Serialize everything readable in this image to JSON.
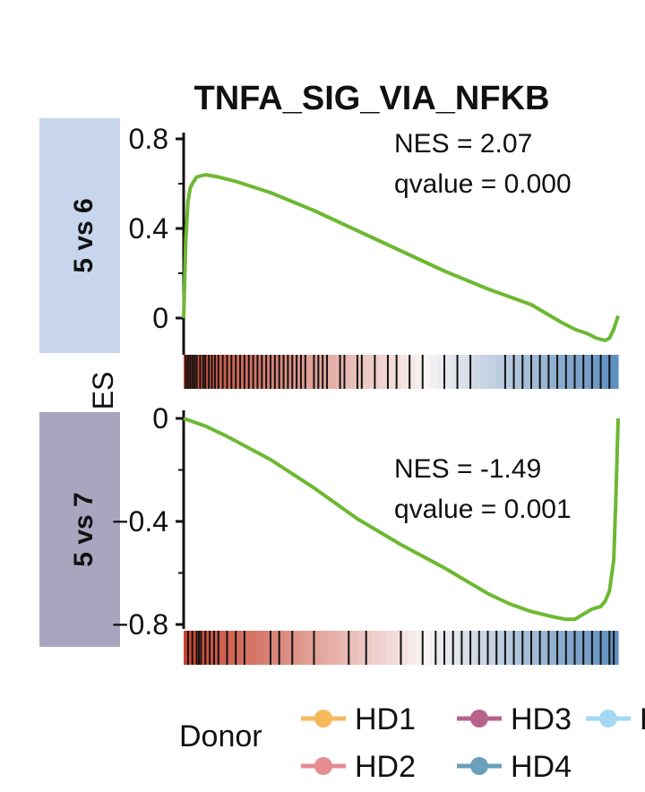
{
  "chart_data": {
    "type": "line",
    "title": "TNFA_SIG_VIA_NFKB",
    "ylabel": "ES",
    "panels": [
      {
        "strip_label": "5 vs 6",
        "strip_color": "#c7d6ec",
        "nes_text": "NES = 2.07",
        "qvalue_text": "qvalue = 0.000",
        "ylim": [
          -0.1,
          0.82
        ],
        "yticks": [
          0,
          0.4,
          0.8
        ],
        "ytick_labels": [
          "0",
          "0.4",
          "0.8"
        ],
        "line_color": "#6db832",
        "x": [
          0,
          0.005,
          0.01,
          0.015,
          0.02,
          0.03,
          0.05,
          0.08,
          0.12,
          0.2,
          0.3,
          0.4,
          0.5,
          0.6,
          0.7,
          0.8,
          0.87,
          0.9,
          0.93,
          0.95,
          0.97,
          0.98,
          0.99,
          1.0
        ],
        "es": [
          0.0,
          0.35,
          0.52,
          0.58,
          0.6,
          0.63,
          0.64,
          0.63,
          0.61,
          0.56,
          0.48,
          0.39,
          0.3,
          0.21,
          0.13,
          0.06,
          -0.02,
          -0.05,
          -0.07,
          -0.09,
          -0.1,
          -0.09,
          -0.05,
          0.01
        ],
        "hits": [
          0.005,
          0.01,
          0.015,
          0.02,
          0.025,
          0.03,
          0.038,
          0.045,
          0.05,
          0.058,
          0.065,
          0.072,
          0.08,
          0.09,
          0.1,
          0.11,
          0.12,
          0.13,
          0.14,
          0.15,
          0.16,
          0.17,
          0.18,
          0.19,
          0.2,
          0.21,
          0.22,
          0.23,
          0.24,
          0.25,
          0.26,
          0.27,
          0.28,
          0.3,
          0.31,
          0.32,
          0.33,
          0.36,
          0.37,
          0.4,
          0.41,
          0.44,
          0.47,
          0.49,
          0.52,
          0.55,
          0.6,
          0.63,
          0.66,
          0.74,
          0.76,
          0.78,
          0.8,
          0.82,
          0.84,
          0.86,
          0.88,
          0.9,
          0.92,
          0.94,
          0.96,
          0.98
        ]
      },
      {
        "strip_label": "5 vs 7",
        "strip_color": "#a9a5bf",
        "nes_text": "NES = -1.49",
        "qvalue_text": "qvalue = 0.001",
        "ylim": [
          -0.82,
          0.02
        ],
        "yticks": [
          0,
          -0.4,
          -0.8
        ],
        "ytick_labels": [
          "0",
          "−0.4",
          "−0.8"
        ],
        "line_color": "#6db832",
        "x": [
          0,
          0.05,
          0.1,
          0.2,
          0.3,
          0.4,
          0.5,
          0.6,
          0.7,
          0.75,
          0.8,
          0.85,
          0.88,
          0.9,
          0.92,
          0.94,
          0.96,
          0.97,
          0.98,
          0.99,
          0.995,
          1.0
        ],
        "es": [
          0.0,
          -0.03,
          -0.07,
          -0.16,
          -0.27,
          -0.39,
          -0.49,
          -0.58,
          -0.68,
          -0.72,
          -0.75,
          -0.77,
          -0.78,
          -0.78,
          -0.76,
          -0.74,
          -0.73,
          -0.71,
          -0.67,
          -0.55,
          -0.3,
          0.0
        ],
        "hits": [
          0.01,
          0.02,
          0.03,
          0.035,
          0.04,
          0.05,
          0.06,
          0.07,
          0.08,
          0.1,
          0.12,
          0.14,
          0.2,
          0.22,
          0.25,
          0.3,
          0.38,
          0.42,
          0.5,
          0.55,
          0.58,
          0.6,
          0.62,
          0.64,
          0.66,
          0.68,
          0.7,
          0.72,
          0.74,
          0.76,
          0.78,
          0.8,
          0.82,
          0.84,
          0.86,
          0.88,
          0.9,
          0.92,
          0.94,
          0.96,
          0.98,
          0.99
        ]
      }
    ],
    "legend": {
      "title": "Donor",
      "position": "bottom",
      "entries": [
        {
          "label": "HD1",
          "color": "#f7b85c"
        },
        {
          "label": "HD3",
          "color": "#b8628b"
        },
        {
          "label": "HD2",
          "color": "#e58d91"
        },
        {
          "label": "HD4",
          "color": "#6a9fbb"
        },
        {
          "label": "H",
          "color": "#a5d8f2"
        }
      ]
    }
  }
}
